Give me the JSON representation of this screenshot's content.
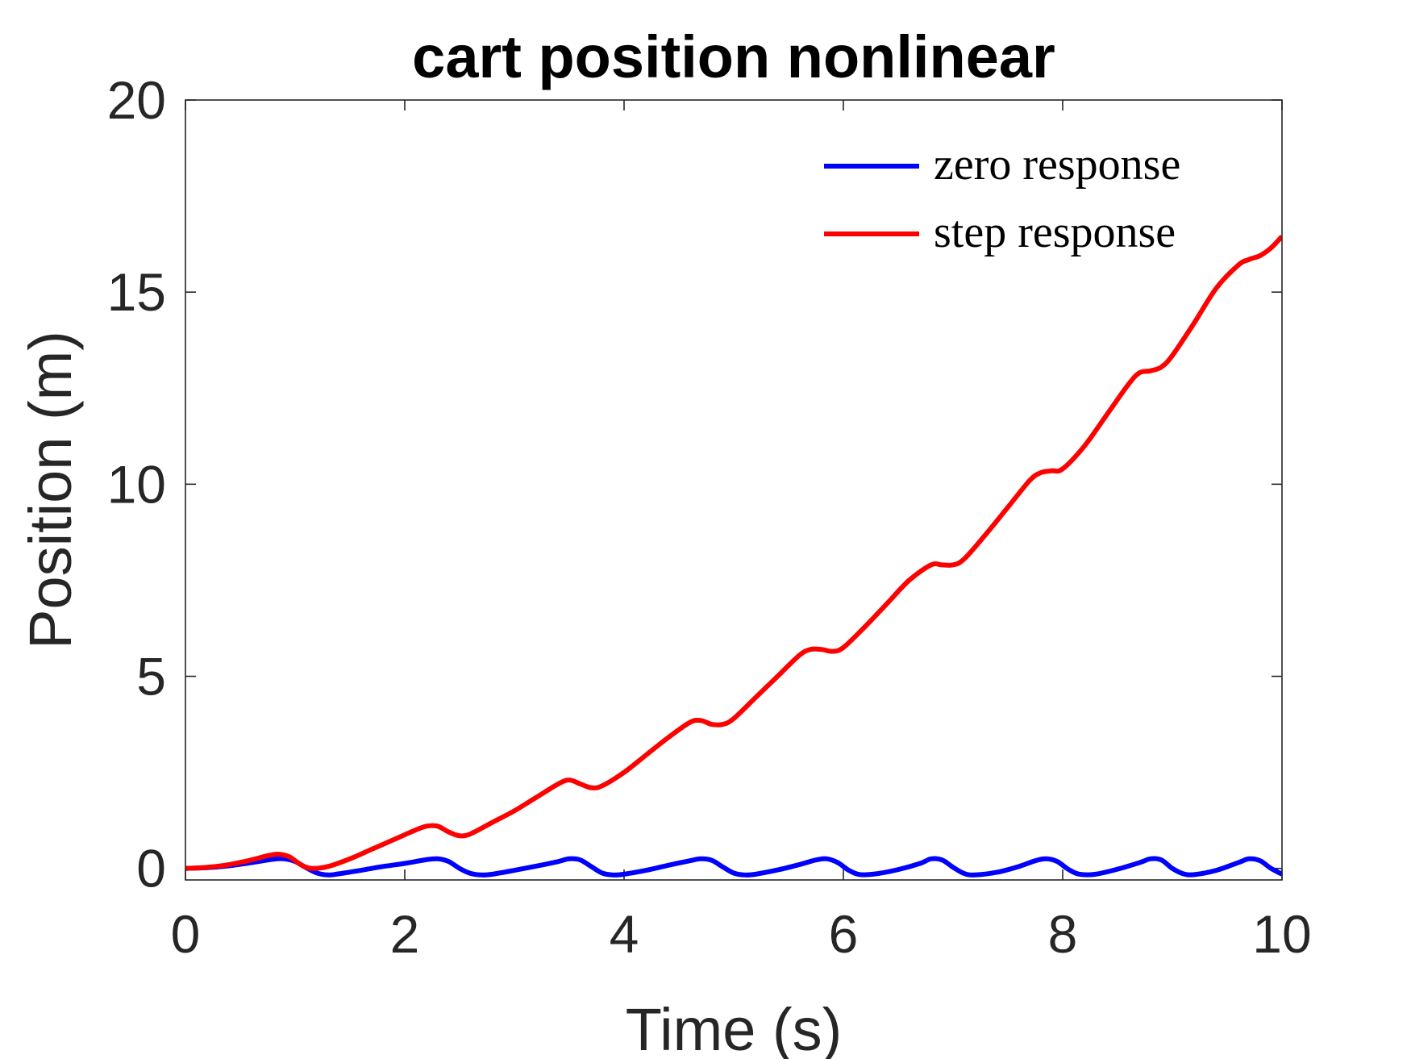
{
  "chart_data": {
    "type": "line",
    "title": "cart position nonlinear",
    "xlabel": "Time (s)",
    "ylabel": "Position (m)",
    "xlim": [
      0,
      10
    ],
    "ylim": [
      -0.3,
      20
    ],
    "xticks": [
      0,
      2,
      4,
      6,
      8,
      10
    ],
    "yticks": [
      0,
      5,
      10,
      15,
      20
    ],
    "grid": false,
    "box": true,
    "legend_position": "top-right",
    "series": [
      {
        "name": "zero response",
        "color": "#0000ff",
        "x": [
          0,
          0.2,
          0.4,
          0.6,
          0.8,
          0.9,
          1.0,
          1.1,
          1.2,
          1.3,
          1.4,
          1.6,
          1.8,
          2.0,
          2.2,
          2.3,
          2.4,
          2.5,
          2.6,
          2.7,
          2.8,
          3.0,
          3.2,
          3.4,
          3.5,
          3.6,
          3.7,
          3.8,
          3.9,
          4.0,
          4.2,
          4.4,
          4.6,
          4.7,
          4.8,
          4.9,
          5.0,
          5.1,
          5.2,
          5.4,
          5.6,
          5.75,
          5.85,
          5.95,
          6.05,
          6.15,
          6.3,
          6.5,
          6.7,
          6.8,
          6.9,
          7.0,
          7.1,
          7.2,
          7.4,
          7.6,
          7.75,
          7.85,
          7.95,
          8.05,
          8.15,
          8.3,
          8.5,
          8.7,
          8.8,
          8.9,
          9.0,
          9.1,
          9.2,
          9.4,
          9.6,
          9.7,
          9.8,
          9.9,
          10.0
        ],
        "y": [
          0.0,
          0.02,
          0.07,
          0.15,
          0.24,
          0.25,
          0.18,
          0.02,
          -0.12,
          -0.17,
          -0.14,
          -0.05,
          0.05,
          0.13,
          0.23,
          0.25,
          0.18,
          0.0,
          -0.13,
          -0.17,
          -0.15,
          -0.05,
          0.06,
          0.18,
          0.25,
          0.22,
          0.05,
          -0.12,
          -0.17,
          -0.15,
          -0.05,
          0.08,
          0.2,
          0.25,
          0.21,
          0.04,
          -0.12,
          -0.17,
          -0.15,
          -0.04,
          0.1,
          0.22,
          0.25,
          0.15,
          -0.05,
          -0.16,
          -0.14,
          -0.03,
          0.13,
          0.25,
          0.22,
          0.03,
          -0.13,
          -0.17,
          -0.1,
          0.05,
          0.2,
          0.25,
          0.18,
          -0.02,
          -0.15,
          -0.15,
          -0.02,
          0.15,
          0.25,
          0.22,
          0.0,
          -0.14,
          -0.16,
          -0.05,
          0.15,
          0.25,
          0.2,
          0.0,
          -0.15
        ]
      },
      {
        "name": "step response",
        "color": "#ff0000",
        "x": [
          0,
          0.2,
          0.4,
          0.6,
          0.75,
          0.85,
          0.95,
          1.05,
          1.15,
          1.3,
          1.5,
          1.7,
          1.9,
          2.1,
          2.2,
          2.3,
          2.4,
          2.5,
          2.6,
          2.8,
          3.0,
          3.2,
          3.4,
          3.5,
          3.6,
          3.7,
          3.8,
          4.0,
          4.2,
          4.4,
          4.6,
          4.7,
          4.8,
          4.9,
          5.0,
          5.2,
          5.4,
          5.6,
          5.7,
          5.8,
          5.9,
          6.0,
          6.2,
          6.4,
          6.6,
          6.8,
          6.9,
          7.0,
          7.1,
          7.3,
          7.5,
          7.7,
          7.8,
          7.9,
          8.0,
          8.2,
          8.4,
          8.6,
          8.7,
          8.8,
          8.9,
          9.0,
          9.2,
          9.4,
          9.6,
          9.7,
          9.8,
          9.9,
          10.0
        ],
        "y": [
          0.0,
          0.03,
          0.1,
          0.22,
          0.33,
          0.37,
          0.3,
          0.1,
          0.0,
          0.05,
          0.25,
          0.5,
          0.75,
          1.0,
          1.1,
          1.1,
          0.95,
          0.85,
          0.9,
          1.2,
          1.5,
          1.85,
          2.2,
          2.3,
          2.2,
          2.1,
          2.15,
          2.5,
          2.95,
          3.4,
          3.8,
          3.85,
          3.75,
          3.75,
          3.9,
          4.45,
          5.0,
          5.55,
          5.7,
          5.7,
          5.65,
          5.75,
          6.3,
          6.9,
          7.5,
          7.9,
          7.9,
          7.9,
          8.05,
          8.7,
          9.4,
          10.1,
          10.3,
          10.35,
          10.4,
          11.0,
          11.8,
          12.6,
          12.9,
          12.95,
          13.05,
          13.35,
          14.2,
          15.1,
          15.7,
          15.85,
          15.95,
          16.15,
          16.45
        ]
      }
    ]
  }
}
